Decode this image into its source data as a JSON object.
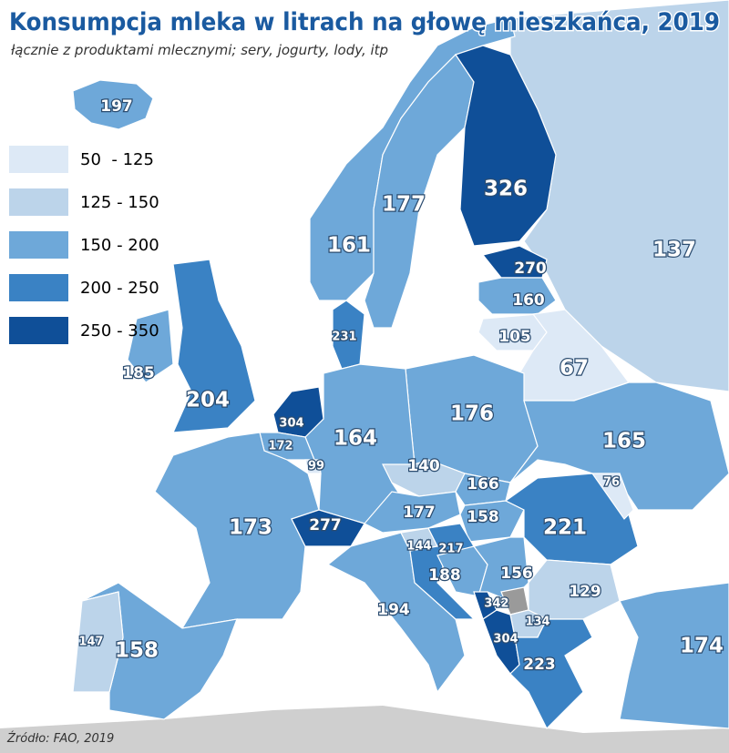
{
  "title": "Konsumpcja mleka w litrach na głowę mieszkańca, 2019",
  "subtitle": "łącznie z produktami mlecznymi; sery, jogurty, lody, itp",
  "source": "Źródło: FAO, 2019",
  "legend": [
    {
      "label": "50  - 125",
      "min": 50,
      "max": 125,
      "color": "#dde9f6"
    },
    {
      "label": "125 - 150",
      "min": 125,
      "max": 150,
      "color": "#bcd4ea"
    },
    {
      "label": "150 - 200",
      "min": 150,
      "max": 200,
      "color": "#6ea8d9"
    },
    {
      "label": "200 - 250",
      "min": 200,
      "max": 250,
      "color": "#3a82c4"
    },
    {
      "label": "250 - 350",
      "min": 250,
      "max": 350,
      "color": "#0f4f98"
    }
  ],
  "regions": [
    197,
    161,
    177,
    326,
    137,
    270,
    160,
    105,
    67,
    231,
    185,
    204,
    304,
    172,
    99,
    164,
    176,
    165,
    140,
    166,
    177,
    158,
    221,
    76,
    277,
    173,
    144,
    217,
    188,
    156,
    129,
    342,
    134,
    304,
    223,
    194,
    147,
    158,
    174
  ]
}
